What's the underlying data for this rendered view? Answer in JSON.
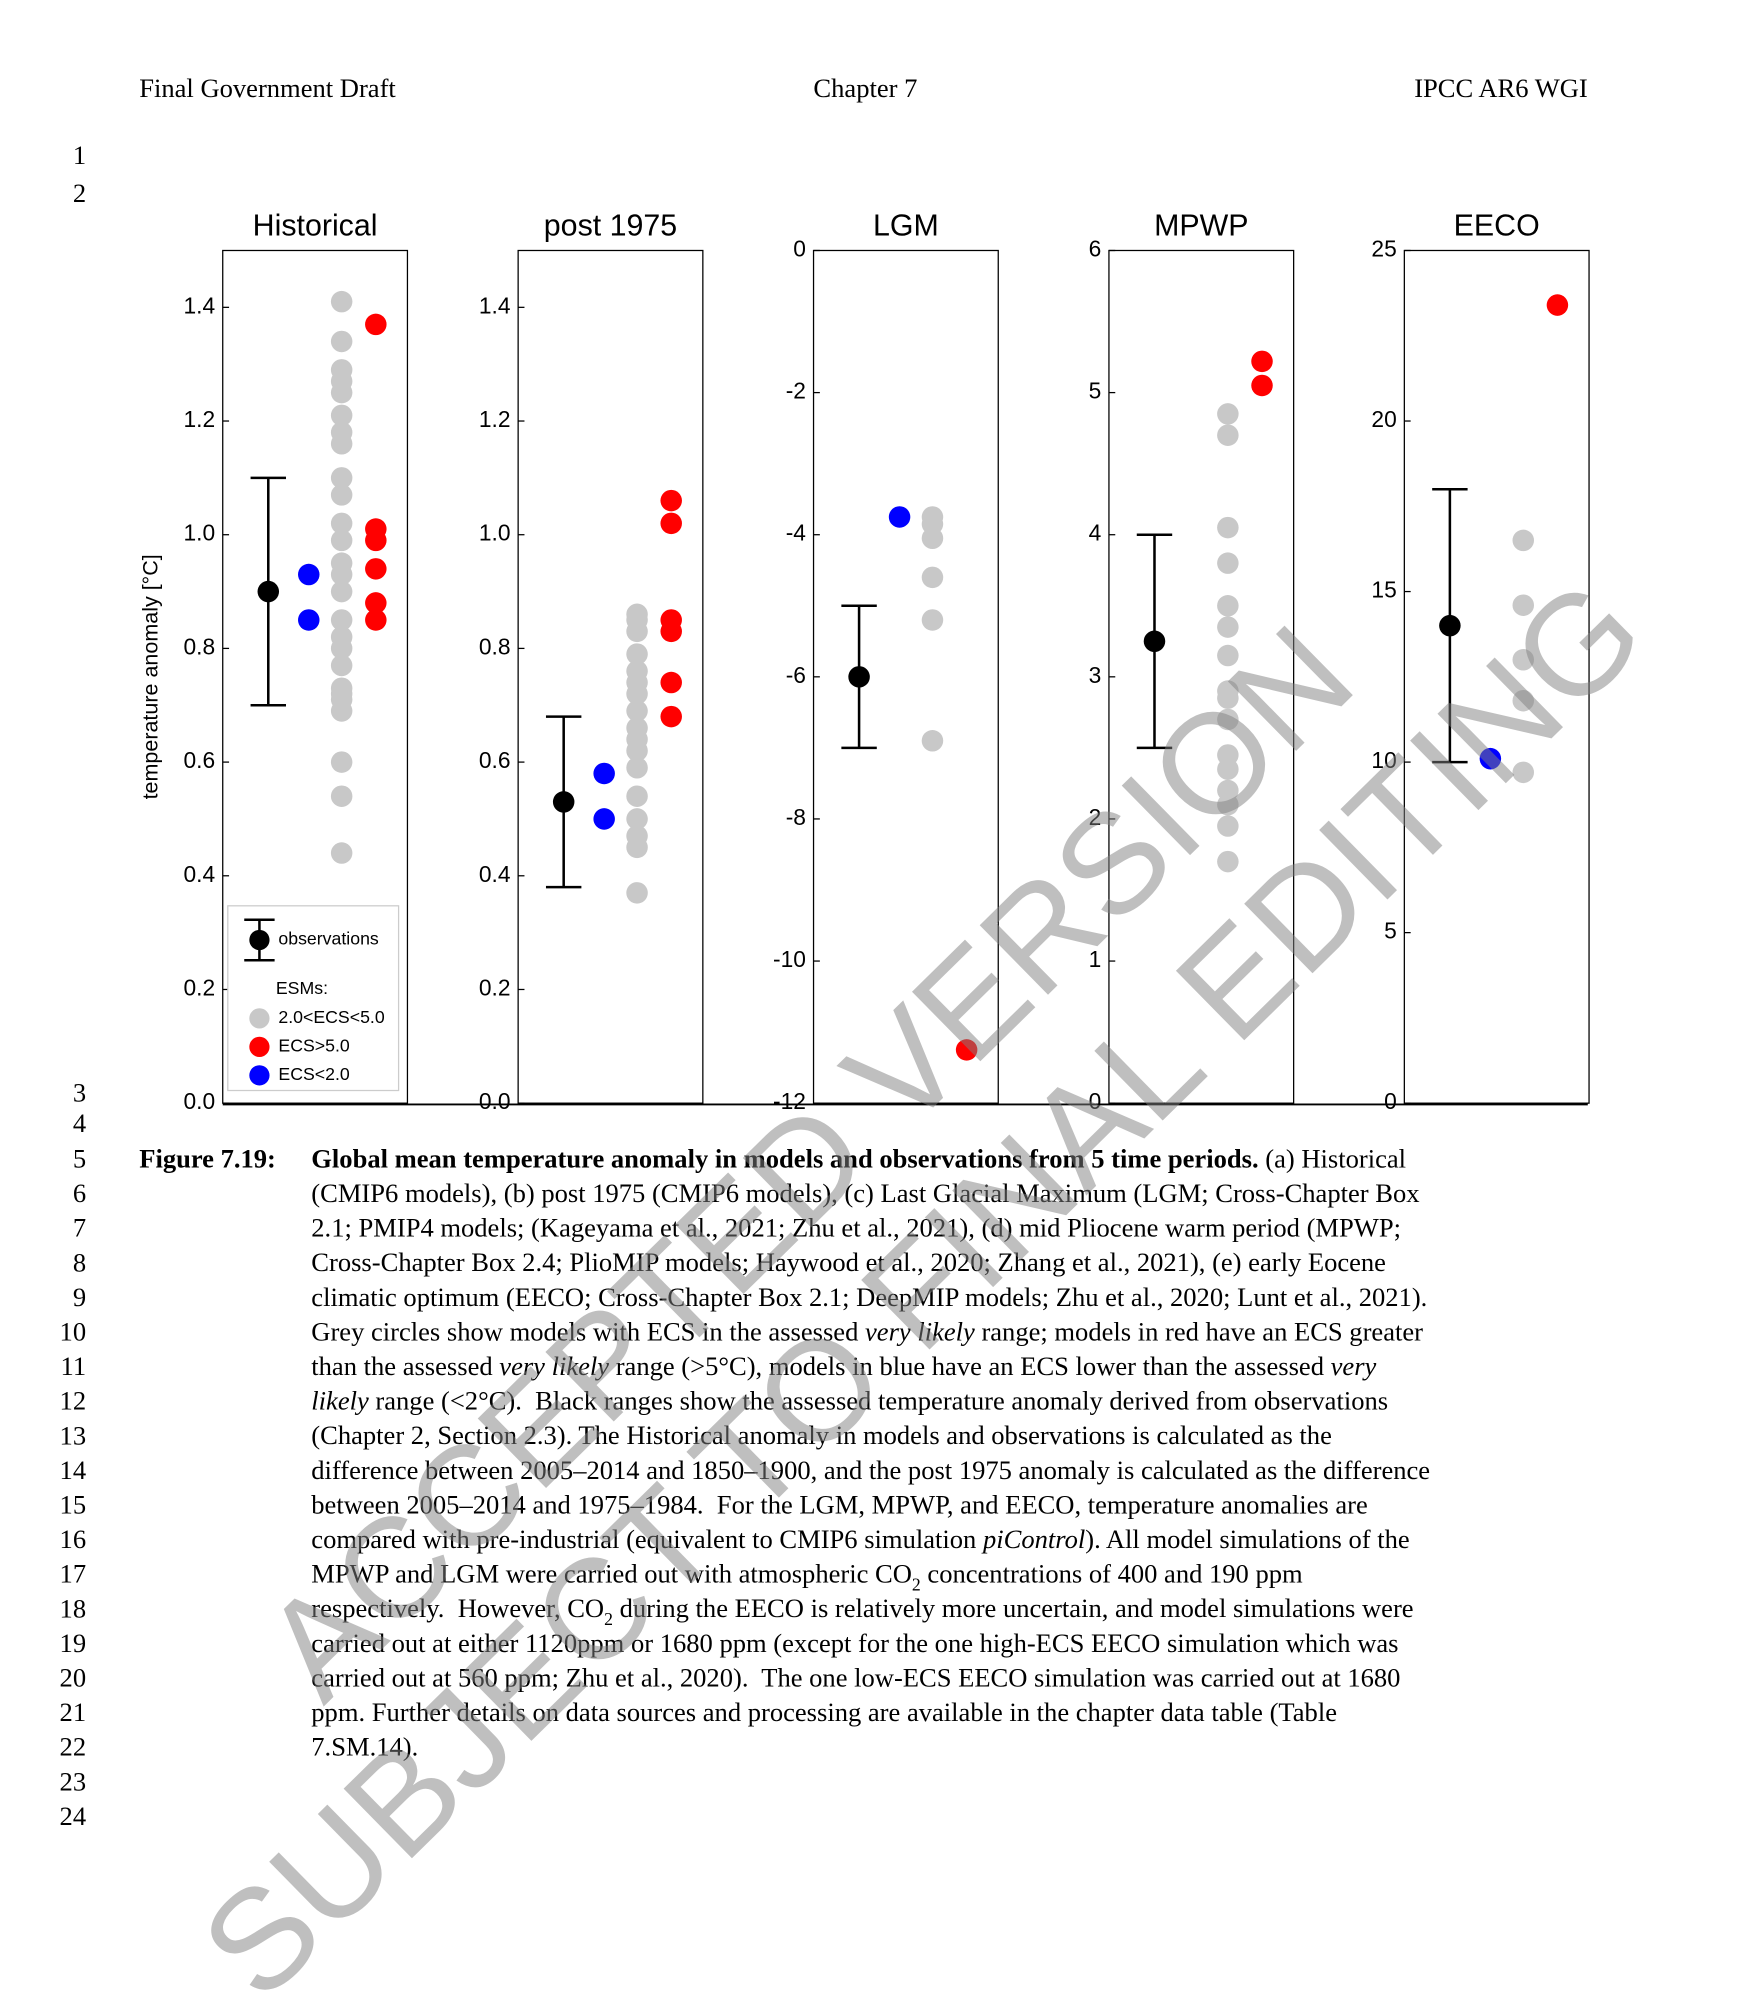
{
  "header": {
    "left": "Final Government Draft",
    "center": "Chapter 7",
    "right": "IPCC AR6 WGI"
  },
  "line_numbers": [
    "1",
    "2",
    "3",
    "4",
    "5",
    "6",
    "7",
    "8",
    "9",
    "10",
    "11",
    "12",
    "13",
    "14",
    "15",
    "16",
    "17",
    "18",
    "19",
    "20",
    "21",
    "22",
    "23",
    "24"
  ],
  "chart_data": [
    {
      "type": "dotplot",
      "title": "Historical",
      "ylabel": "temperature anomaly [°C]",
      "ylim": [
        0,
        1.5
      ],
      "yticks": [
        {
          "value": 0,
          "label": "0.0"
        },
        0.2,
        0.4,
        0.6,
        0.8,
        {
          "value": 1,
          "label": "1.0"
        },
        1.2,
        1.4
      ],
      "observations": {
        "name": "observations",
        "value": 0.9,
        "low": 0.7,
        "high": 1.1
      },
      "legend_title": "ESMs:",
      "series": [
        {
          "name": "2.0<ECS<5.0",
          "color": "#c8c8c8",
          "values": [
            1.41,
            1.34,
            1.29,
            1.27,
            1.25,
            1.21,
            1.18,
            1.16,
            1.1,
            1.07,
            1.02,
            0.99,
            0.95,
            0.93,
            0.9,
            0.85,
            0.82,
            0.8,
            0.77,
            0.73,
            0.72,
            0.71,
            0.69,
            0.6,
            0.54,
            0.44
          ]
        },
        {
          "name": "ECS>5.0",
          "color": "#ff0000",
          "values": [
            1.37,
            1.01,
            0.99,
            0.94,
            0.88,
            0.85
          ]
        },
        {
          "name": "ECS<2.0",
          "color": "#0000ff",
          "values": [
            0.93,
            0.85
          ]
        }
      ]
    },
    {
      "type": "dotplot",
      "title": "post 1975",
      "ylim": [
        0,
        1.5
      ],
      "yticks": [
        {
          "value": 0,
          "label": "0.0"
        },
        0.2,
        0.4,
        0.6,
        0.8,
        {
          "value": 1,
          "label": "1.0"
        },
        1.2,
        1.4
      ],
      "observations": {
        "value": 0.53,
        "low": 0.38,
        "high": 0.68
      },
      "series": [
        {
          "color": "#c8c8c8",
          "values": [
            0.86,
            0.85,
            0.83,
            0.79,
            0.76,
            0.74,
            0.72,
            0.69,
            0.66,
            0.64,
            0.62,
            0.59,
            0.54,
            0.5,
            0.47,
            0.45,
            0.37
          ]
        },
        {
          "color": "#ff0000",
          "values": [
            1.06,
            1.02,
            0.85,
            0.83,
            0.74,
            0.68
          ]
        },
        {
          "color": "#0000ff",
          "values": [
            0.58,
            0.5
          ]
        }
      ]
    },
    {
      "type": "dotplot",
      "title": "LGM",
      "ylim": [
        -12,
        0
      ],
      "yticks": [
        -12,
        -10,
        -8,
        -6,
        -4,
        -2,
        0
      ],
      "observations": {
        "value": -6,
        "low": -7,
        "high": -5
      },
      "series": [
        {
          "color": "#c8c8c8",
          "values": [
            -3.75,
            -3.85,
            -4.05,
            -4.6,
            -5.2,
            -6.9
          ]
        },
        {
          "color": "#ff0000",
          "values": [
            -11.25
          ]
        },
        {
          "color": "#0000ff",
          "values": [
            -3.75
          ]
        }
      ]
    },
    {
      "type": "dotplot",
      "title": "MPWP",
      "ylim": [
        0,
        6
      ],
      "yticks": [
        0,
        1,
        2,
        3,
        4,
        5,
        6
      ],
      "observations": {
        "value": 3.25,
        "low": 2.5,
        "high": 4
      },
      "series": [
        {
          "color": "#c8c8c8",
          "values": [
            4.85,
            4.7,
            4.05,
            3.8,
            3.5,
            3.35,
            3.15,
            2.9,
            2.85,
            2.7,
            2.45,
            2.35,
            2.2,
            2.1,
            1.95,
            1.7
          ]
        },
        {
          "color": "#ff0000",
          "values": [
            5.22,
            5.05
          ]
        }
      ]
    },
    {
      "type": "dotplot",
      "title": "EECO",
      "ylim": [
        0,
        25
      ],
      "yticks": [
        0,
        5,
        10,
        15,
        20,
        25
      ],
      "observations": {
        "value": 14,
        "low": 10,
        "high": 18
      },
      "series": [
        {
          "color": "#c8c8c8",
          "values": [
            16.5,
            14.6,
            13,
            11.8,
            9.7
          ]
        },
        {
          "color": "#ff0000",
          "values": [
            23.4
          ]
        },
        {
          "color": "#0000ff",
          "values": [
            10.1
          ]
        }
      ]
    }
  ],
  "caption": {
    "label": "Figure 7.19:",
    "lines": [
      [
        {
          "text": "Global mean temperature anomaly in models and observations from 5 time periods.",
          "style": "bold"
        },
        " (a) Historical"
      ],
      [
        "(CMIP6 models), (b) post 1975 (CMIP6 models), (c) Last Glacial Maximum (LGM; Cross-Chapter Box"
      ],
      [
        "2.1; PMIP4 models; (Kageyama et al., 2021; Zhu et al., 2021), (d) mid Pliocene warm period (MPWP;"
      ],
      [
        "Cross-Chapter Box 2.4; PlioMIP models; Haywood et al., 2020; Zhang et al., 2021), (e) early Eocene"
      ],
      [
        "climatic optimum (EECO; Cross-Chapter Box 2.1; DeepMIP models; Zhu et al., 2020; Lunt et al., 2021)."
      ],
      [
        "Grey circles show models with ECS in the assessed ",
        {
          "text": "very likely",
          "style": "italic"
        },
        " range; models in red have an ECS greater"
      ],
      [
        "than the assessed ",
        {
          "text": "very likely",
          "style": "italic"
        },
        " range (>5°C), models in blue have an ECS lower than the assessed ",
        {
          "text": "very",
          "style": "italic"
        }
      ],
      [
        {
          "text": "likely",
          "style": "italic"
        },
        " range (<2°C).  Black ranges show the assessed temperature anomaly derived from observations"
      ],
      [
        "(Chapter 2, Section 2.3). The Historical anomaly in models and observations is calculated as the"
      ],
      [
        "difference between 2005–2014 and 1850–1900, and the post 1975 anomaly is calculated as the difference"
      ],
      [
        "between 2005–2014 and 1975–1984.  For the LGM, MPWP, and EECO, temperature anomalies are"
      ],
      [
        "compared with pre-industrial (equivalent to CMIP6 simulation ",
        {
          "text": "piControl",
          "style": "italic"
        },
        "). All model simulations of the"
      ],
      [
        "MPWP and LGM were carried out with atmospheric CO",
        {
          "text": "2",
          "style": "sub"
        },
        " concentrations of 400 and 190 ppm"
      ],
      [
        "respectively.  However, CO",
        {
          "text": "2",
          "style": "sub"
        },
        " during the EECO is relatively more uncertain, and model simulations were"
      ],
      [
        "carried out at either 1120ppm or 1680 ppm (except for the one high-ECS EECO simulation which was"
      ],
      [
        "carried out at 560 ppm; Zhu et al., 2020).  The one low-ECS EECO simulation was carried out at 1680"
      ],
      [
        "ppm. Further details on data sources and processing are available in the chapter data table (Table"
      ],
      [
        "7.SM.14)."
      ]
    ]
  },
  "watermark": [
    "ACCEPTED VERSION",
    "SUBJECT TO FINAL EDITING"
  ]
}
